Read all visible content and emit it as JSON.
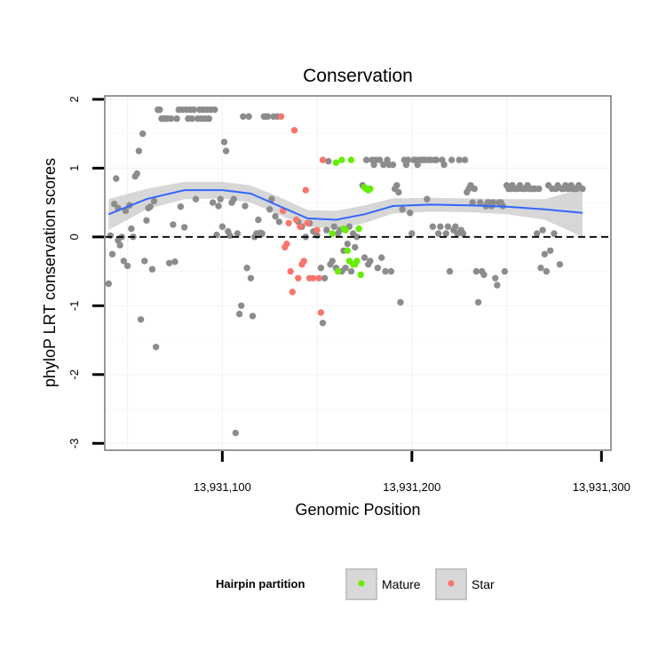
{
  "chart_data": {
    "type": "scatter",
    "title": "Conservation",
    "xlabel": "Genomic Position",
    "ylabel": "phyloP LRT conservation scores",
    "xlim": [
      13931038,
      13931305
    ],
    "ylim": [
      -3.1,
      2.05
    ],
    "x_ticks": [
      13931100,
      13931200,
      13931300
    ],
    "x_tick_labels": [
      "13,931,100",
      "13,931,200",
      "13,931,300"
    ],
    "y_ticks": [
      -3,
      -2,
      -1,
      0,
      1,
      2
    ],
    "y_tick_labels": [
      "-3",
      "-2",
      "-1",
      "0",
      "1",
      "2"
    ],
    "reference_line": {
      "y": 0,
      "style": "dashed"
    },
    "grid": true,
    "legend": {
      "title": "Hairpin partition",
      "position": "bottom",
      "entries": [
        {
          "label": "Mature",
          "color": "#66ee00"
        },
        {
          "label": "Star",
          "color": "#f8766d"
        }
      ]
    },
    "colors": {
      "other": "#8c8c8c",
      "Mature": "#66ee00",
      "Star": "#f8766d",
      "smooth": "#3366ff",
      "band": "#d0d0d0"
    },
    "smooth": {
      "x": [
        13931040,
        13931060,
        13931080,
        13931100,
        13931115,
        13931130,
        13931145,
        13931160,
        13931175,
        13931190,
        13931210,
        13931230,
        13931250,
        13931270,
        13931290
      ],
      "y": [
        0.33,
        0.55,
        0.68,
        0.68,
        0.63,
        0.45,
        0.27,
        0.25,
        0.33,
        0.45,
        0.47,
        0.46,
        0.44,
        0.4,
        0.35
      ],
      "lo": [
        0.1,
        0.4,
        0.55,
        0.56,
        0.5,
        0.32,
        0.15,
        0.12,
        0.2,
        0.34,
        0.37,
        0.36,
        0.33,
        0.25,
        0.0
      ],
      "hi": [
        0.55,
        0.7,
        0.8,
        0.8,
        0.75,
        0.58,
        0.39,
        0.38,
        0.46,
        0.56,
        0.57,
        0.56,
        0.55,
        0.55,
        0.7
      ]
    },
    "series": [
      {
        "name": "",
        "group": "other",
        "points": [
          [
            13931040,
            -0.68
          ],
          [
            13931041,
            0.02
          ],
          [
            13931042,
            -0.25
          ],
          [
            13931043,
            0.48
          ],
          [
            13931044,
            0.85
          ],
          [
            13931045,
            0.42
          ],
          [
            13931045,
            -0.05
          ],
          [
            13931046,
            -0.12
          ],
          [
            13931047,
            0.0
          ],
          [
            13931048,
            -0.35
          ],
          [
            13931049,
            0.38
          ],
          [
            13931050,
            -0.42
          ],
          [
            13931051,
            0.46
          ],
          [
            13931052,
            0.12
          ],
          [
            13931053,
            0.0
          ],
          [
            13931054,
            0.88
          ],
          [
            13931055,
            0.92
          ],
          [
            13931056,
            1.25
          ],
          [
            13931057,
            -1.2
          ],
          [
            13931058,
            1.5
          ],
          [
            13931059,
            -0.35
          ],
          [
            13931060,
            0.24
          ],
          [
            13931061,
            0.42
          ],
          [
            13931062,
            0.44
          ],
          [
            13931063,
            -0.47
          ],
          [
            13931064,
            0.52
          ],
          [
            13931065,
            -1.6
          ],
          [
            13931066,
            1.85
          ],
          [
            13931067,
            1.85
          ],
          [
            13931068,
            1.72
          ],
          [
            13931069,
            1.72
          ],
          [
            13931070,
            1.72
          ],
          [
            13931071,
            1.72
          ],
          [
            13931072,
            -0.38
          ],
          [
            13931073,
            1.72
          ],
          [
            13931074,
            0.18
          ],
          [
            13931075,
            -0.36
          ],
          [
            13931076,
            1.72
          ],
          [
            13931077,
            1.85
          ],
          [
            13931078,
            0.44
          ],
          [
            13931079,
            1.85
          ],
          [
            13931080,
            0.14
          ],
          [
            13931081,
            1.85
          ],
          [
            13931082,
            1.72
          ],
          [
            13931083,
            1.85
          ],
          [
            13931084,
            1.72
          ],
          [
            13931085,
            1.85
          ],
          [
            13931086,
            0.55
          ],
          [
            13931087,
            1.72
          ],
          [
            13931088,
            1.85
          ],
          [
            13931089,
            1.72
          ],
          [
            13931090,
            1.85
          ],
          [
            13931091,
            1.72
          ],
          [
            13931092,
            1.85
          ],
          [
            13931093,
            1.72
          ],
          [
            13931094,
            1.85
          ],
          [
            13931095,
            0.5
          ],
          [
            13931096,
            1.85
          ],
          [
            13931097,
            0.03
          ],
          [
            13931098,
            0.45
          ],
          [
            13931099,
            0.55
          ],
          [
            13931100,
            0.15
          ],
          [
            13931101,
            1.38
          ],
          [
            13931102,
            1.25
          ],
          [
            13931103,
            0.08
          ],
          [
            13931104,
            0.02
          ],
          [
            13931105,
            0.5
          ],
          [
            13931106,
            0.55
          ],
          [
            13931107,
            -2.85
          ],
          [
            13931108,
            0.05
          ],
          [
            13931109,
            -1.12
          ],
          [
            13931110,
            -1.0
          ],
          [
            13931111,
            1.75
          ],
          [
            13931112,
            0.45
          ],
          [
            13931113,
            -0.45
          ],
          [
            13931114,
            1.75
          ],
          [
            13931115,
            -0.6
          ],
          [
            13931116,
            -1.15
          ],
          [
            13931117,
            0.0
          ],
          [
            13931118,
            0.05
          ],
          [
            13931119,
            0.25
          ],
          [
            13931120,
            0.06
          ],
          [
            13931121,
            0.05
          ],
          [
            13931122,
            1.75
          ],
          [
            13931123,
            1.75
          ],
          [
            13931124,
            1.75
          ],
          [
            13931125,
            0.4
          ],
          [
            13931126,
            0.55
          ],
          [
            13931127,
            1.75
          ],
          [
            13931128,
            0.3
          ],
          [
            13931129,
            1.75
          ],
          [
            13931130,
            0.22
          ],
          [
            13931140,
            0.22
          ],
          [
            13931142,
            0.15
          ],
          [
            13931144,
            0.0
          ],
          [
            13931146,
            0.2
          ],
          [
            13931148,
            0.08
          ],
          [
            13931150,
            0.02
          ],
          [
            13931152,
            -0.45
          ],
          [
            13931153,
            -1.25
          ],
          [
            13931154,
            -0.6
          ],
          [
            13931155,
            0.1
          ],
          [
            13931156,
            1.1
          ],
          [
            13931157,
            -0.4
          ],
          [
            13931158,
            -0.35
          ],
          [
            13931159,
            0.15
          ],
          [
            13931160,
            -0.45
          ],
          [
            13931161,
            0.05
          ],
          [
            13931162,
            0.1
          ],
          [
            13931163,
            -0.5
          ],
          [
            13931164,
            -0.2
          ],
          [
            13931165,
            -0.45
          ],
          [
            13931166,
            -0.1
          ],
          [
            13931167,
            0.15
          ],
          [
            13931168,
            -0.5
          ],
          [
            13931169,
            0.05
          ],
          [
            13931170,
            -0.15
          ],
          [
            13931171,
            0.0
          ],
          [
            13931172,
            0.12
          ],
          [
            13931174,
            0.75
          ],
          [
            13931175,
            -0.3
          ],
          [
            13931176,
            1.12
          ],
          [
            13931177,
            -0.4
          ],
          [
            13931178,
            -0.35
          ],
          [
            13931179,
            1.12
          ],
          [
            13931180,
            1.05
          ],
          [
            13931181,
            1.12
          ],
          [
            13931182,
            -0.45
          ],
          [
            13931183,
            1.12
          ],
          [
            13931184,
            -0.3
          ],
          [
            13931185,
            1.05
          ],
          [
            13931186,
            -0.5
          ],
          [
            13931187,
            1.12
          ],
          [
            13931188,
            1.05
          ],
          [
            13931189,
            -0.5
          ],
          [
            13931190,
            1.05
          ],
          [
            13931191,
            0.7
          ],
          [
            13931192,
            0.75
          ],
          [
            13931193,
            0.65
          ],
          [
            13931194,
            -0.95
          ],
          [
            13931195,
            0.4
          ],
          [
            13931196,
            1.12
          ],
          [
            13931197,
            1.05
          ],
          [
            13931198,
            1.12
          ],
          [
            13931199,
            0.35
          ],
          [
            13931200,
            0.05
          ],
          [
            13931201,
            1.12
          ],
          [
            13931202,
            1.12
          ],
          [
            13931203,
            1.05
          ],
          [
            13931204,
            1.12
          ],
          [
            13931205,
            1.12
          ],
          [
            13931206,
            1.12
          ],
          [
            13931207,
            1.12
          ],
          [
            13931208,
            0.55
          ],
          [
            13931209,
            1.12
          ],
          [
            13931210,
            1.12
          ],
          [
            13931211,
            0.15
          ],
          [
            13931212,
            1.12
          ],
          [
            13931213,
            1.12
          ],
          [
            13931214,
            0.05
          ],
          [
            13931215,
            0.15
          ],
          [
            13931216,
            1.12
          ],
          [
            13931217,
            1.05
          ],
          [
            13931218,
            0.05
          ],
          [
            13931219,
            0.15
          ],
          [
            13931220,
            -0.5
          ],
          [
            13931221,
            1.12
          ],
          [
            13931222,
            0.1
          ],
          [
            13931223,
            0.15
          ],
          [
            13931224,
            0.05
          ],
          [
            13931225,
            1.12
          ],
          [
            13931226,
            0.1
          ],
          [
            13931227,
            0.05
          ],
          [
            13931228,
            1.12
          ],
          [
            13931229,
            0.65
          ],
          [
            13931230,
            0.7
          ],
          [
            13931231,
            0.75
          ],
          [
            13931232,
            0.5
          ],
          [
            13931233,
            0.7
          ],
          [
            13931234,
            -0.5
          ],
          [
            13931235,
            -0.95
          ],
          [
            13931236,
            0.5
          ],
          [
            13931237,
            -0.5
          ],
          [
            13931238,
            -0.55
          ],
          [
            13931239,
            0.45
          ],
          [
            13931240,
            0.5
          ],
          [
            13931241,
            0.5
          ],
          [
            13931242,
            0.45
          ],
          [
            13931243,
            0.5
          ],
          [
            13931244,
            -0.6
          ],
          [
            13931245,
            -0.7
          ],
          [
            13931246,
            0.5
          ],
          [
            13931247,
            0.5
          ],
          [
            13931248,
            0.45
          ],
          [
            13931249,
            -0.5
          ],
          [
            13931250,
            0.75
          ],
          [
            13931251,
            0.7
          ],
          [
            13931252,
            0.7
          ],
          [
            13931253,
            0.75
          ],
          [
            13931254,
            0.7
          ],
          [
            13931255,
            0.7
          ],
          [
            13931256,
            0.7
          ],
          [
            13931257,
            0.75
          ],
          [
            13931258,
            0.7
          ],
          [
            13931259,
            0.7
          ],
          [
            13931260,
            0.7
          ],
          [
            13931261,
            0.75
          ],
          [
            13931262,
            0.7
          ],
          [
            13931263,
            0.7
          ],
          [
            13931264,
            0.7
          ],
          [
            13931265,
            0.7
          ],
          [
            13931266,
            0.05
          ],
          [
            13931267,
            0.7
          ],
          [
            13931268,
            -0.45
          ],
          [
            13931269,
            0.1
          ],
          [
            13931270,
            -0.25
          ],
          [
            13931271,
            -0.5
          ],
          [
            13931272,
            0.75
          ],
          [
            13931273,
            -0.2
          ],
          [
            13931274,
            0.7
          ],
          [
            13931275,
            0.05
          ],
          [
            13931276,
            0.7
          ],
          [
            13931277,
            0.75
          ],
          [
            13931278,
            -0.4
          ],
          [
            13931279,
            0.7
          ],
          [
            13931280,
            0.7
          ],
          [
            13931281,
            0.75
          ],
          [
            13931282,
            0.7
          ],
          [
            13931283,
            0.7
          ],
          [
            13931284,
            0.75
          ],
          [
            13931285,
            0.7
          ],
          [
            13931286,
            0.7
          ],
          [
            13931287,
            0.7
          ],
          [
            13931288,
            0.75
          ],
          [
            13931290,
            0.7
          ]
        ]
      },
      {
        "name": "Star",
        "group": "Star",
        "points": [
          [
            13931131,
            1.75
          ],
          [
            13931132,
            0.38
          ],
          [
            13931133,
            -0.15
          ],
          [
            13931134,
            -0.1
          ],
          [
            13931135,
            0.2
          ],
          [
            13931136,
            -0.5
          ],
          [
            13931137,
            -0.8
          ],
          [
            13931138,
            1.55
          ],
          [
            13931139,
            0.25
          ],
          [
            13931140,
            -0.6
          ],
          [
            13931141,
            0.15
          ],
          [
            13931142,
            -0.4
          ],
          [
            13931143,
            -0.35
          ],
          [
            13931144,
            0.68
          ],
          [
            13931145,
            0.2
          ],
          [
            13931146,
            -0.6
          ],
          [
            13931148,
            -0.6
          ],
          [
            13931150,
            0.1
          ],
          [
            13931151,
            -0.6
          ],
          [
            13931152,
            -1.1
          ],
          [
            13931153,
            1.12
          ]
        ]
      },
      {
        "name": "Mature",
        "group": "Mature",
        "points": [
          [
            13931158,
            0.05
          ],
          [
            13931160,
            1.08
          ],
          [
            13931161,
            -0.5
          ],
          [
            13931163,
            1.12
          ],
          [
            13931164,
            0.12
          ],
          [
            13931165,
            0.1
          ],
          [
            13931166,
            -0.2
          ],
          [
            13931167,
            -0.35
          ],
          [
            13931168,
            1.12
          ],
          [
            13931169,
            -0.4
          ],
          [
            13931170,
            -0.4
          ],
          [
            13931171,
            -0.35
          ],
          [
            13931172,
            0.12
          ],
          [
            13931173,
            -0.55
          ],
          [
            13931175,
            0.72
          ],
          [
            13931176,
            0.7
          ],
          [
            13931177,
            0.68
          ],
          [
            13931178,
            0.7
          ]
        ]
      }
    ]
  }
}
